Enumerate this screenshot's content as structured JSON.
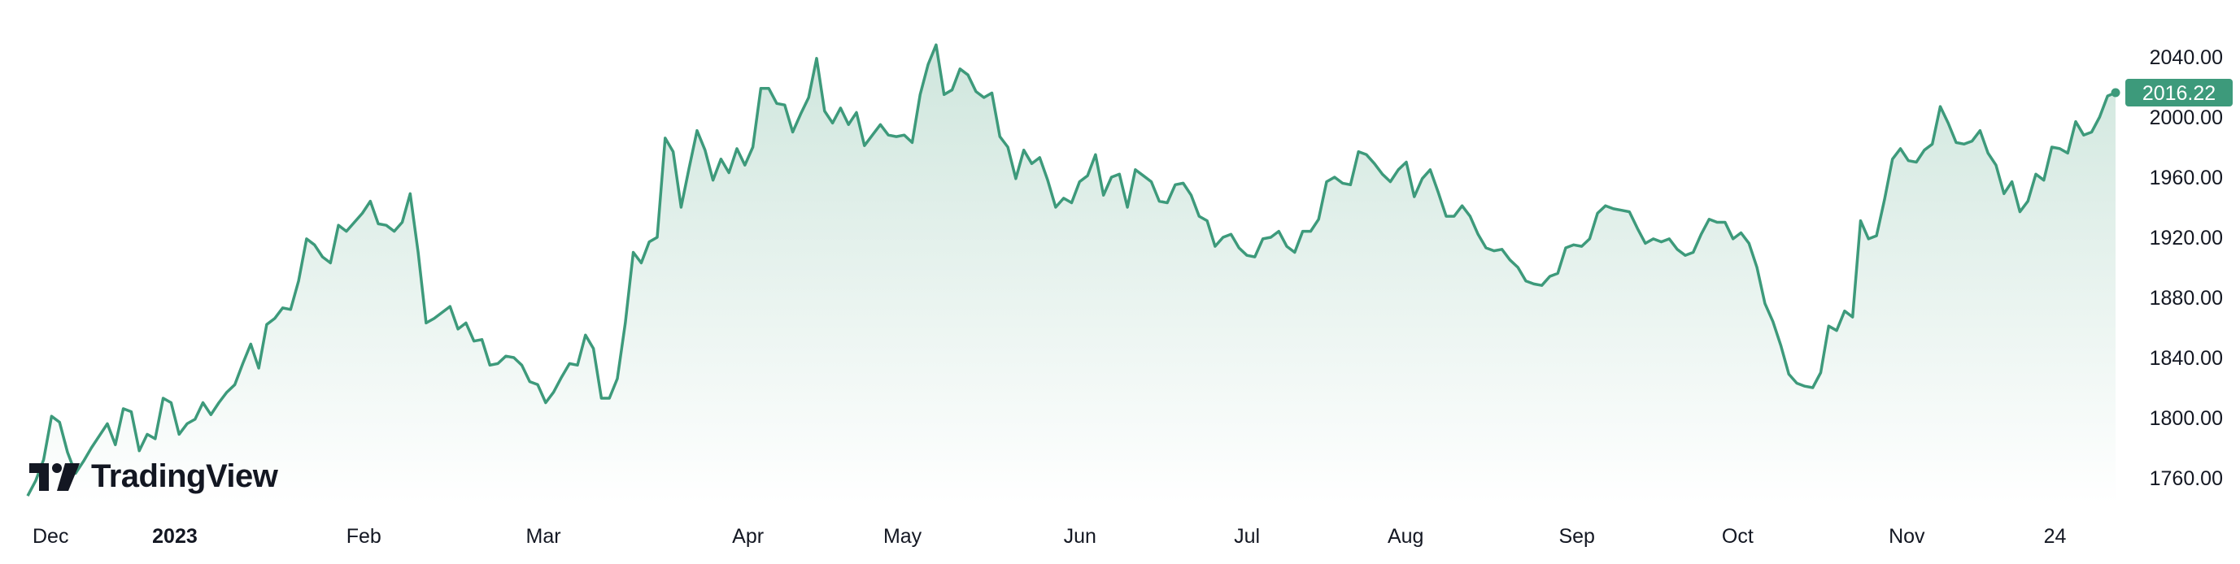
{
  "brand": {
    "logo_text": "TradingView",
    "icon": "tradingview-logo-icon"
  },
  "colors": {
    "line": "#3d9a7b",
    "fill_top": "#cfe6dd",
    "fill_bottom": "#ffffff",
    "label_bg": "#3d9a7b",
    "text": "#131722"
  },
  "last_price_label": "2016.22",
  "chart_data": {
    "type": "area",
    "title": "",
    "xlabel": "",
    "ylabel": "",
    "ylim": [
      1745,
      2065
    ],
    "grid": false,
    "x_axis_labels": [
      {
        "label": "Dec",
        "bold": false
      },
      {
        "label": "2023",
        "bold": true
      },
      {
        "label": "Feb",
        "bold": false
      },
      {
        "label": "Mar",
        "bold": false
      },
      {
        "label": "Apr",
        "bold": false
      },
      {
        "label": "May",
        "bold": false
      },
      {
        "label": "Jun",
        "bold": false
      },
      {
        "label": "Jul",
        "bold": false
      },
      {
        "label": "Aug",
        "bold": false
      },
      {
        "label": "Sep",
        "bold": false
      },
      {
        "label": "Oct",
        "bold": false
      },
      {
        "label": "Nov",
        "bold": false
      },
      {
        "label": "24",
        "bold": false
      }
    ],
    "y_axis_labels": [
      "2040.00",
      "2000.00",
      "1960.00",
      "1920.00",
      "1880.00",
      "1840.00",
      "1800.00",
      "1760.00"
    ],
    "y_axis_values": [
      2040,
      2000,
      1960,
      1920,
      1880,
      1840,
      1800,
      1760
    ],
    "series": [
      {
        "values": [
          1748,
          1758,
          1772,
          1801,
          1797,
          1777,
          1763,
          1771,
          1780,
          1788,
          1796,
          1782,
          1806,
          1804,
          1778,
          1789,
          1786,
          1813,
          1810,
          1789,
          1796,
          1799,
          1810,
          1802,
          1810,
          1817,
          1822,
          1836,
          1849,
          1833,
          1862,
          1866,
          1873,
          1872,
          1891,
          1919,
          1915,
          1907,
          1903,
          1928,
          1924,
          1930,
          1936,
          1944,
          1929,
          1928,
          1924,
          1930,
          1949,
          1910,
          1863,
          1866,
          1870,
          1874,
          1859,
          1863,
          1851,
          1852,
          1835,
          1836,
          1841,
          1840,
          1835,
          1824,
          1822,
          1810,
          1817,
          1827,
          1836,
          1835,
          1855,
          1846,
          1813,
          1813,
          1826,
          1863,
          1910,
          1903,
          1917,
          1920,
          1986,
          1977,
          1940,
          1966,
          1991,
          1978,
          1958,
          1972,
          1963,
          1979,
          1968,
          1980,
          2019,
          2019,
          2009,
          2008,
          1990,
          2002,
          2013,
          2039,
          2004,
          1996,
          2006,
          1995,
          2003,
          1981,
          1988,
          1995,
          1988,
          1987,
          1988,
          1983,
          2015,
          2035,
          2048,
          2015,
          2018,
          2032,
          2028,
          2017,
          2013,
          2016,
          1987,
          1980,
          1959,
          1978,
          1969,
          1973,
          1958,
          1940,
          1946,
          1943,
          1957,
          1961,
          1975,
          1948,
          1960,
          1962,
          1940,
          1965,
          1961,
          1957,
          1944,
          1943,
          1955,
          1956,
          1948,
          1934,
          1931,
          1914,
          1920,
          1922,
          1913,
          1908,
          1907,
          1919,
          1920,
          1924,
          1914,
          1910,
          1924,
          1924,
          1932,
          1957,
          1960,
          1956,
          1955,
          1977,
          1975,
          1969,
          1962,
          1957,
          1965,
          1970,
          1947,
          1959,
          1965,
          1950,
          1934,
          1934,
          1941,
          1934,
          1922,
          1913,
          1911,
          1912,
          1905,
          1900,
          1891,
          1889,
          1888,
          1894,
          1896,
          1913,
          1915,
          1914,
          1919,
          1936,
          1941,
          1939,
          1938,
          1937,
          1926,
          1916,
          1919,
          1917,
          1919,
          1912,
          1908,
          1910,
          1922,
          1932,
          1930,
          1930,
          1919,
          1923,
          1916,
          1900,
          1876,
          1864,
          1848,
          1829,
          1823,
          1821,
          1820,
          1830,
          1861,
          1858,
          1871,
          1867,
          1931,
          1919,
          1921,
          1945,
          1972,
          1979,
          1971,
          1970,
          1978,
          1982,
          2007,
          1996,
          1983,
          1982,
          1984,
          1991,
          1976,
          1968,
          1949,
          1957,
          1937,
          1944,
          1962,
          1958,
          1980,
          1979,
          1976,
          1997,
          1988,
          1990,
          2000,
          2014,
          2016.22
        ]
      }
    ]
  }
}
